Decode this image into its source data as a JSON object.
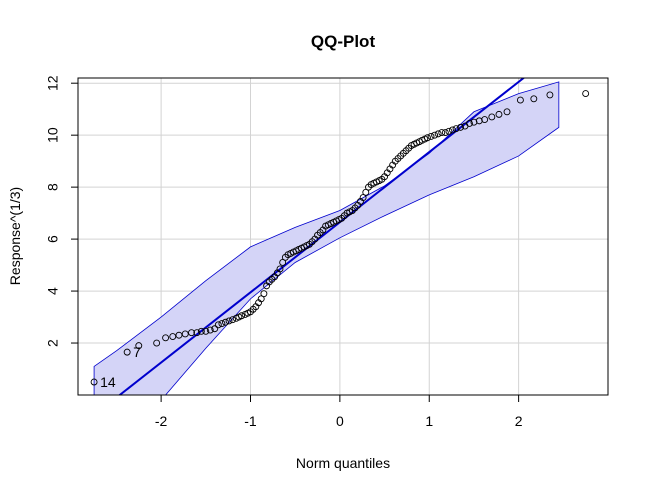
{
  "chart_data": {
    "type": "scatter",
    "title": "QQ-Plot",
    "xlabel": "Norm quantiles",
    "ylabel": "Response^(1/3)",
    "xlim": [
      -2.93,
      3.0
    ],
    "ylim": [
      0.0,
      12.2
    ],
    "xticks": [
      -2,
      -1,
      0,
      1,
      2
    ],
    "yticks": [
      2,
      4,
      6,
      8,
      10,
      12
    ],
    "grid": true,
    "reference_line": {
      "intercept": 6.65,
      "slope": 2.7,
      "color": "#0000CD"
    },
    "envelope": {
      "fill": "#D4D4F7",
      "stroke": "#0000CD",
      "x": [
        -2.75,
        -2.5,
        -2.0,
        -1.5,
        -1.0,
        -0.5,
        0.0,
        0.5,
        1.0,
        1.5,
        2.0,
        2.45
      ],
      "upper": [
        1.1,
        1.7,
        3.0,
        4.4,
        5.7,
        6.45,
        7.1,
        8.05,
        9.3,
        10.9,
        11.6,
        12.05
      ],
      "lower": [
        -3.5,
        -2.5,
        -0.2,
        1.8,
        3.7,
        5.1,
        6.05,
        6.9,
        7.7,
        8.4,
        9.2,
        10.3
      ]
    },
    "point_labels": [
      {
        "text": "14",
        "x": -2.75,
        "y": 0.5
      },
      {
        "text": "7",
        "x": -2.38,
        "y": 1.65
      }
    ],
    "points": {
      "x": [
        -2.75,
        -2.38,
        -2.25,
        -2.05,
        -1.95,
        -1.87,
        -1.8,
        -1.73,
        -1.66,
        -1.6,
        -1.55,
        -1.5,
        -1.45,
        -1.4,
        -1.36,
        -1.32,
        -1.28,
        -1.24,
        -1.2,
        -1.16,
        -1.13,
        -1.1,
        -1.06,
        -1.03,
        -1.0,
        -0.97,
        -0.94,
        -0.91,
        -0.88,
        -0.85,
        -0.82,
        -0.79,
        -0.76,
        -0.73,
        -0.7,
        -0.67,
        -0.64,
        -0.61,
        -0.58,
        -0.55,
        -0.52,
        -0.49,
        -0.46,
        -0.43,
        -0.4,
        -0.37,
        -0.34,
        -0.31,
        -0.28,
        -0.25,
        -0.22,
        -0.19,
        -0.16,
        -0.13,
        -0.1,
        -0.07,
        -0.04,
        -0.01,
        0.02,
        0.05,
        0.08,
        0.11,
        0.14,
        0.17,
        0.2,
        0.23,
        0.26,
        0.29,
        0.32,
        0.35,
        0.38,
        0.41,
        0.44,
        0.47,
        0.5,
        0.53,
        0.56,
        0.59,
        0.62,
        0.65,
        0.68,
        0.71,
        0.74,
        0.77,
        0.8,
        0.83,
        0.86,
        0.89,
        0.92,
        0.95,
        0.98,
        1.02,
        1.06,
        1.1,
        1.14,
        1.18,
        1.22,
        1.26,
        1.3,
        1.35,
        1.4,
        1.45,
        1.5,
        1.56,
        1.62,
        1.7,
        1.78,
        1.87,
        2.02,
        2.17,
        2.35,
        2.75
      ],
      "y": [
        0.5,
        1.65,
        1.9,
        2.0,
        2.2,
        2.25,
        2.3,
        2.35,
        2.4,
        2.4,
        2.45,
        2.45,
        2.5,
        2.55,
        2.7,
        2.75,
        2.8,
        2.85,
        2.9,
        2.95,
        3.0,
        3.05,
        3.1,
        3.15,
        3.2,
        3.3,
        3.4,
        3.55,
        3.7,
        3.9,
        4.2,
        4.35,
        4.45,
        4.55,
        4.7,
        4.85,
        5.1,
        5.3,
        5.4,
        5.45,
        5.5,
        5.55,
        5.6,
        5.65,
        5.7,
        5.75,
        5.8,
        5.9,
        6.0,
        6.15,
        6.25,
        6.35,
        6.5,
        6.55,
        6.6,
        6.65,
        6.7,
        6.75,
        6.8,
        6.9,
        7.0,
        7.05,
        7.1,
        7.2,
        7.3,
        7.45,
        7.6,
        7.8,
        8.0,
        8.1,
        8.15,
        8.2,
        8.25,
        8.3,
        8.4,
        8.55,
        8.7,
        8.85,
        9.0,
        9.1,
        9.2,
        9.3,
        9.4,
        9.5,
        9.6,
        9.65,
        9.7,
        9.75,
        9.8,
        9.85,
        9.9,
        9.95,
        10.0,
        10.05,
        10.1,
        10.1,
        10.15,
        10.2,
        10.25,
        10.3,
        10.35,
        10.45,
        10.5,
        10.55,
        10.6,
        10.7,
        10.8,
        10.9,
        11.35,
        11.4,
        11.55,
        11.6
      ]
    }
  }
}
